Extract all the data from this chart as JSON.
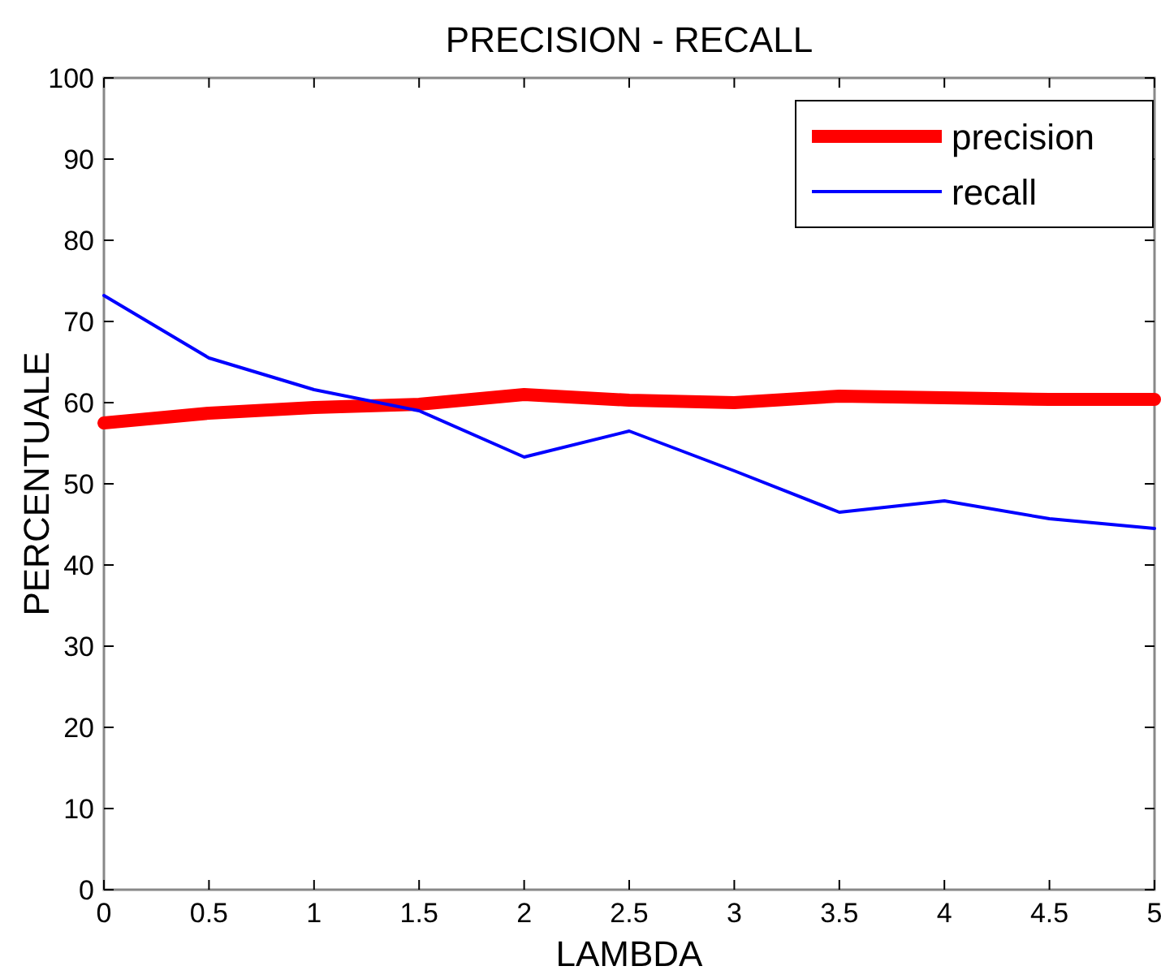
{
  "chart_data": {
    "type": "line",
    "title": "PRECISION - RECALL",
    "xlabel": "LAMBDA",
    "ylabel": "PERCENTUALE",
    "x": [
      0,
      0.5,
      1,
      1.5,
      2,
      2.5,
      3,
      3.5,
      4,
      4.5,
      5
    ],
    "series": [
      {
        "name": "precision",
        "color": "#ff0000",
        "values": [
          57.5,
          58.7,
          59.4,
          59.8,
          61,
          60.3,
          60,
          60.8,
          60.6,
          60.4,
          60.4
        ]
      },
      {
        "name": "recall",
        "color": "#0000ff",
        "values": [
          73.2,
          65.5,
          61.6,
          59,
          53.3,
          56.5,
          51.6,
          46.5,
          47.9,
          45.7,
          44.5
        ]
      }
    ],
    "xlim": [
      0,
      5
    ],
    "xticks": [
      0,
      0.5,
      1,
      1.5,
      2,
      2.5,
      3,
      3.5,
      4,
      4.5,
      5
    ],
    "ylim": [
      0,
      100
    ],
    "yticks": [
      0,
      10,
      20,
      30,
      40,
      50,
      60,
      70,
      80,
      90,
      100
    ],
    "grid": false,
    "legend": "top right",
    "marker": "none",
    "line_style": "solid"
  }
}
